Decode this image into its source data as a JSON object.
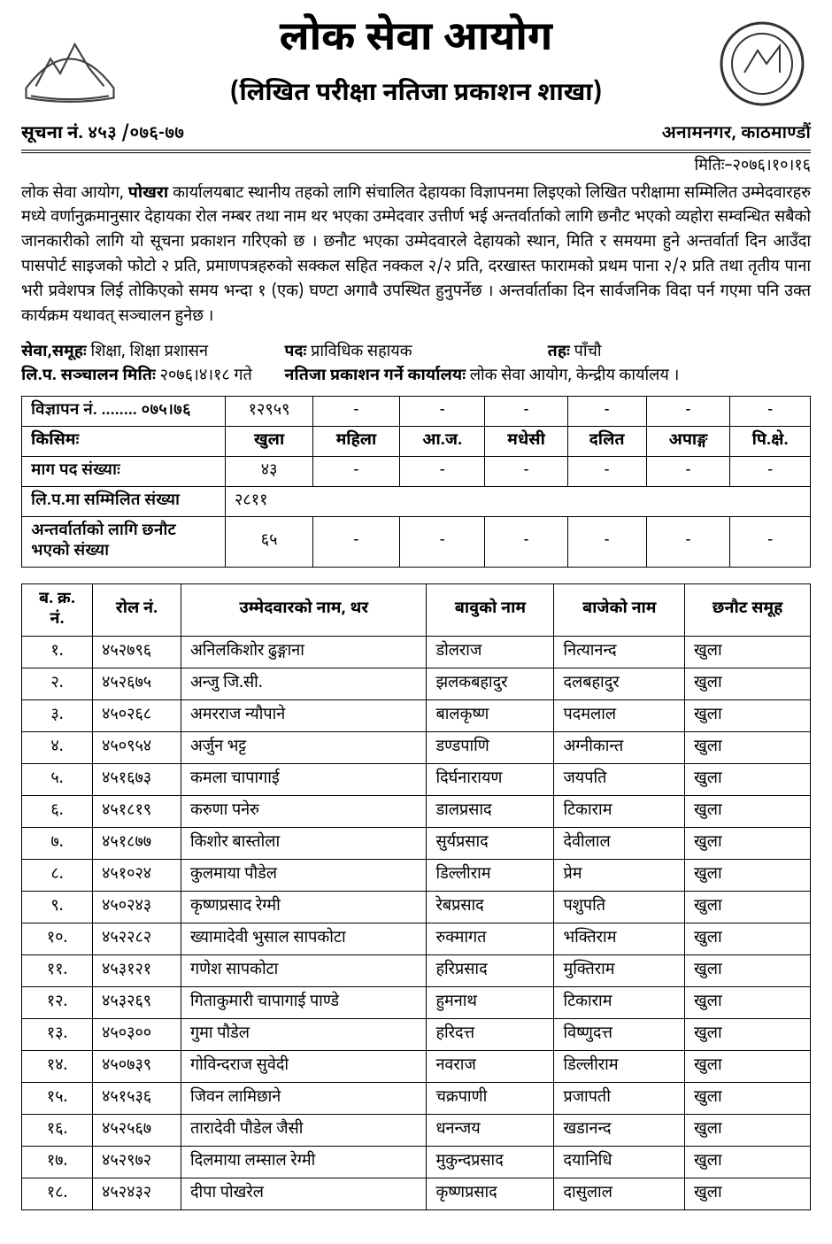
{
  "header": {
    "org_title": "लोक सेवा आयोग",
    "sub_title": "(लिखित परीक्षा नतिजा प्रकाशन शाखा)",
    "notice_label": "सूचना नं.",
    "notice_no": "४५३ /०७६-७७",
    "location": "अनामनगर, काठमाण्डौं",
    "date_label": "मितिः–",
    "date": "२०७६।१०।१६"
  },
  "body": {
    "para": "लोक सेवा आयोग, <b>पोखरा</b> कार्यालयबाट स्थानीय तहको लागि संचालित देहायका विज्ञापनमा लिइएको लिखित परीक्षामा सम्मिलित उम्मेदवारहरु मध्ये वर्णानुक्रमानुसार देहायका रोल नम्बर तथा नाम थर भएका उम्मेदवार उत्तीर्ण भई अन्तर्वार्ताको लागि छनौट भएको व्यहोरा सम्वन्धित सबैको जानकारीको लागि यो सूचना प्रकाशन गरिएको छ । छनौट भएका उम्मेदवारले देहायको स्थान, मिति र समयमा हुने अन्तर्वार्ता दिन आउँदा पासपोर्ट साइजको फोटो २ प्रति, प्रमाणपत्रहरुको सक्कल सहित नक्कल २/२ प्रति, दरखास्त फारामको प्रथम पाना २/२ प्रति तथा तृतीय पाना भरी प्रवेशपत्र लिई तोकिएको समय भन्दा १ (एक) घण्टा अगावै उपस्थित हुनुपर्नेछ । अन्तर्वार्ताका दिन सार्वजनिक विदा पर्न गएमा पनि उक्त कार्यक्रम यथावत् सञ्चालन  हुनेछ ।"
  },
  "meta": {
    "service_label": "सेवा,समूहः",
    "service": "शिक्षा, शिक्षा प्रशासन",
    "post_label": "पदः",
    "post": "प्राविधिक सहायक",
    "level_label": "तहः",
    "level": "पाँचौ",
    "exam_date_label": "लि.प. सञ्चालन मितिः",
    "exam_date": "२०७६।४।१८ गते",
    "result_office_label": "नतिजा प्रकाशन गर्ने कार्यालयः",
    "result_office": "लोक सेवा आयोग, केन्द्रीय कार्यालय ।"
  },
  "summary": {
    "rows": [
      {
        "label": "विज्ञापन नं. ........ ०७५।७६",
        "cells": [
          "१२९५९",
          "-",
          "-",
          "-",
          "-",
          "-",
          "-"
        ]
      },
      {
        "label": "किसिमः",
        "cells": [
          "खुला",
          "महिला",
          "आ.ज.",
          "मधेसी",
          "दलित",
          "अपाङ्ग",
          "पि.क्षे."
        ],
        "bold": true
      },
      {
        "label": "माग पद संख्याः",
        "cells": [
          "४३",
          "-",
          "-",
          "-",
          "-",
          "-",
          "-"
        ]
      },
      {
        "label": "लि.प.मा सम्मिलित संख्या",
        "cells": [
          "२८११"
        ],
        "span": 7
      },
      {
        "label": "अन्तर्वार्ताको लागि छनौट भएको संख्या",
        "cells": [
          "६५",
          "-",
          "-",
          "-",
          "-",
          "-",
          "-"
        ]
      }
    ]
  },
  "results": {
    "columns": [
      "ब. क्र. नं.",
      "रोल नं.",
      "उम्मेदवारको नाम, थर",
      "बावुको नाम",
      "बाजेको नाम",
      "छनौट समूह"
    ],
    "rows": [
      [
        "१.",
        "४५२७९६",
        "अनिलकिशोर ढुङ्गाना",
        "डोलराज",
        "नित्यानन्द",
        "खुला"
      ],
      [
        "२.",
        "४५२६७५",
        "अन्जु जि.सी.",
        "झलकबहादुर",
        "दलबहादुर",
        "खुला"
      ],
      [
        "३.",
        "४५०२६८",
        "अमरराज न्यौपाने",
        "बालकृष्ण",
        "पदमलाल",
        "खुला"
      ],
      [
        "४.",
        "४५०९५४",
        "अर्जुन भट्ट",
        "डण्डपाणि",
        "अग्नीकान्त",
        "खुला"
      ],
      [
        "५.",
        "४५१६७३",
        "कमला चापागाई",
        "दिर्घनारायण",
        "जयपति",
        "खुला"
      ],
      [
        "६.",
        "४५१८१९",
        "करुणा पनेरु",
        "डालप्रसाद",
        "टिकाराम",
        "खुला"
      ],
      [
        "७.",
        "४५१८७७",
        "किशोर बास्तोला",
        "सुर्यप्रसाद",
        "देवीलाल",
        "खुला"
      ],
      [
        "८.",
        "४५१०२४",
        "कुलमाया पौडेल",
        "डिल्लीराम",
        "प्रेम",
        "खुला"
      ],
      [
        "९.",
        "४५०२४३",
        "कृष्णप्रसाद रेग्मी",
        "रेबप्रसाद",
        "पशुपति",
        "खुला"
      ],
      [
        "१०.",
        "४५२२८२",
        "ख्यामादेवी भुसाल सापकोटा",
        "रुक्मागत",
        "भक्तिराम",
        "खुला"
      ],
      [
        "११.",
        "४५३१२१",
        "गणेश सापकोटा",
        "हरिप्रसाद",
        "मुक्तिराम",
        "खुला"
      ],
      [
        "१२.",
        "४५३२६९",
        "गिताकुमारी चापागाई पाण्डे",
        "हुमनाथ",
        "टिकाराम",
        "खुला"
      ],
      [
        "१३.",
        "४५०३००",
        "गुमा पौडेल",
        "हरिदत्त",
        "विष्णुदत्त",
        "खुला"
      ],
      [
        "१४.",
        "४५०७३९",
        "गोविन्दराज सुवेदी",
        "नवराज",
        "डिल्लीराम",
        "खुला"
      ],
      [
        "१५.",
        "४५१५३६",
        "जिवन लामिछाने",
        "चक्रपाणी",
        "प्रजापती",
        "खुला"
      ],
      [
        "१६.",
        "४५२५६७",
        "तारादेवी पौडेल जैसी",
        "धनन्जय",
        "खडानन्द",
        "खुला"
      ],
      [
        "१७.",
        "४५२९७२",
        "दिलमाया लम्साल रेग्मी",
        "मुकुन्दप्रसाद",
        "दयानिधि",
        "खुला"
      ],
      [
        "१८.",
        "४५२४३२",
        "दीपा पोखरेल",
        "कृष्णप्रसाद",
        "दासुलाल",
        "खुला"
      ]
    ]
  }
}
